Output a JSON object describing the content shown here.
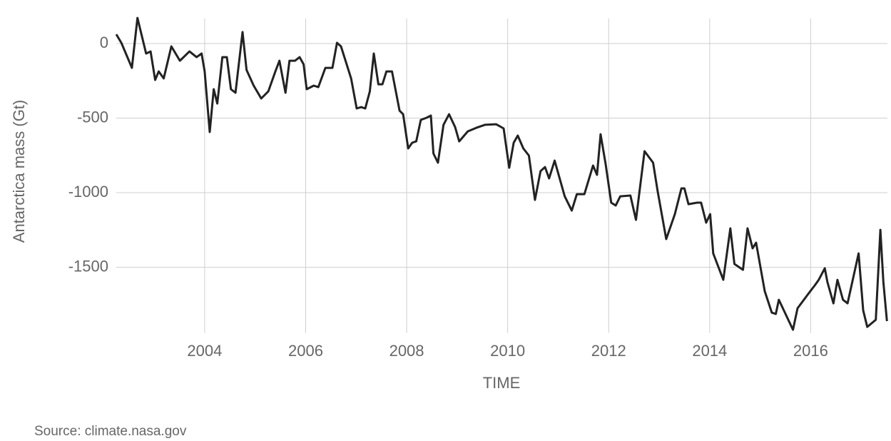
{
  "chart_data": {
    "type": "line",
    "y_label": "Antarctica mass (Gt)",
    "x_label": "TIME",
    "source": "Source: climate.nasa.gov",
    "color": "#222222",
    "grid": true,
    "x": [
      2002.25,
      2002.35,
      2002.56,
      2002.67,
      2002.84,
      2002.93,
      2003.02,
      2003.09,
      2003.19,
      2003.34,
      2003.51,
      2003.7,
      2003.84,
      2003.94,
      2004.0,
      2004.1,
      2004.18,
      2004.25,
      2004.35,
      2004.44,
      2004.52,
      2004.61,
      2004.75,
      2004.83,
      2004.97,
      2005.12,
      2005.26,
      2005.4,
      2005.48,
      2005.6,
      2005.68,
      2005.79,
      2005.88,
      2005.96,
      2006.02,
      2006.16,
      2006.25,
      2006.39,
      2006.53,
      2006.62,
      2006.7,
      2006.9,
      2007.01,
      2007.1,
      2007.18,
      2007.27,
      2007.35,
      2007.44,
      2007.52,
      2007.6,
      2007.71,
      2007.86,
      2007.93,
      2008.03,
      2008.11,
      2008.19,
      2008.28,
      2008.39,
      2008.48,
      2008.53,
      2008.62,
      2008.73,
      2008.84,
      2008.96,
      2009.04,
      2009.21,
      2009.38,
      2009.55,
      2009.77,
      2009.92,
      2010.03,
      2010.12,
      2010.2,
      2010.31,
      2010.42,
      2010.54,
      2010.65,
      2010.74,
      2010.82,
      2010.93,
      2011.13,
      2011.27,
      2011.37,
      2011.52,
      2011.69,
      2011.77,
      2011.84,
      2011.94,
      2012.05,
      2012.14,
      2012.23,
      2012.43,
      2012.54,
      2012.71,
      2012.88,
      2012.97,
      2013.14,
      2013.31,
      2013.44,
      2013.5,
      2013.58,
      2013.75,
      2013.83,
      2013.93,
      2014.01,
      2014.07,
      2014.27,
      2014.41,
      2014.49,
      2014.66,
      2014.75,
      2014.85,
      2014.92,
      2015.09,
      2015.23,
      2015.31,
      2015.37,
      2015.65,
      2015.74,
      2015.97,
      2016.08,
      2016.16,
      2016.28,
      2016.33,
      2016.45,
      2016.53,
      2016.64,
      2016.73,
      2016.95,
      2017.04,
      2017.12,
      2017.29,
      2017.38,
      2017.44,
      2017.51
    ],
    "values": [
      62,
      5,
      -163,
      172,
      -67,
      -53,
      -244,
      -187,
      -234,
      -19,
      -115,
      -53,
      -91,
      -67,
      -187,
      -593,
      -306,
      -402,
      -91,
      -91,
      -306,
      -330,
      77,
      -177,
      -282,
      -368,
      -321,
      -187,
      -115,
      -330,
      -115,
      -115,
      -91,
      -139,
      -306,
      -282,
      -292,
      -163,
      -163,
      5,
      -19,
      -234,
      -435,
      -426,
      -435,
      -321,
      -67,
      -273,
      -273,
      -187,
      -187,
      -450,
      -474,
      -703,
      -665,
      -656,
      -512,
      -498,
      -483,
      -737,
      -799,
      -545,
      -474,
      -560,
      -656,
      -589,
      -565,
      -545,
      -541,
      -569,
      -833,
      -665,
      -617,
      -703,
      -751,
      -1048,
      -856,
      -828,
      -904,
      -785,
      -1024,
      -1120,
      -1010,
      -1010,
      -818,
      -880,
      -608,
      -809,
      -1067,
      -1086,
      -1024,
      -1019,
      -1182,
      -722,
      -799,
      -990,
      -1311,
      -1144,
      -971,
      -971,
      -1077,
      -1067,
      -1067,
      -1201,
      -1144,
      -1407,
      -1584,
      -1239,
      -1478,
      -1517,
      -1239,
      -1373,
      -1335,
      -1660,
      -1804,
      -1813,
      -1718,
      -1919,
      -1775,
      -1670,
      -1622,
      -1584,
      -1507,
      -1598,
      -1742,
      -1584,
      -1718,
      -1742,
      -1407,
      -1789,
      -1900,
      -1852,
      -1249,
      -1598,
      -1861
    ],
    "xlim": [
      2002.25,
      2017.52
    ],
    "ylim": [
      -1940,
      160
    ],
    "xticks": [
      2004,
      2006,
      2008,
      2010,
      2012,
      2014,
      2016
    ],
    "yticks": [
      0,
      -500,
      -1000,
      -1500
    ]
  }
}
